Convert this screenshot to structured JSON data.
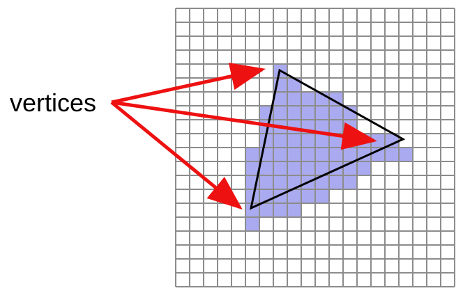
{
  "label": "vertices",
  "colors": {
    "background": "#ffffff",
    "grid_line": "#8c8c8c",
    "pixel_fill": "#aaaaf0",
    "triangle_stroke": "#000000",
    "arrow": "#ee1111",
    "label_text": "#000000"
  },
  "icons": {
    "arrow": "arrow-icon",
    "triangle": "triangle-icon"
  }
}
